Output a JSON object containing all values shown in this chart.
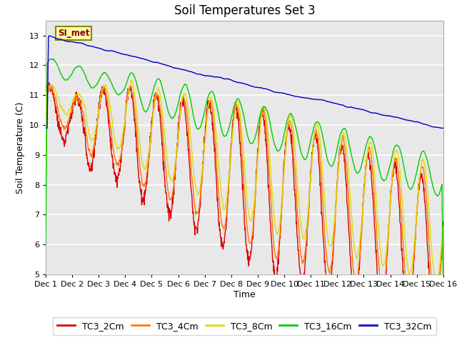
{
  "title": "Soil Temperatures Set 3",
  "xlabel": "Time",
  "ylabel": "Soil Temperature (C)",
  "ylim": [
    5.0,
    13.5
  ],
  "yticks": [
    5.0,
    6.0,
    7.0,
    8.0,
    9.0,
    10.0,
    11.0,
    12.0,
    13.0
  ],
  "xlim": [
    0,
    15
  ],
  "xtick_labels": [
    "Dec 1",
    "Dec 2",
    "Dec 3",
    "Dec 4",
    "Dec 5",
    "Dec 6",
    "Dec 7",
    "Dec 8",
    "Dec 9",
    "Dec 10",
    "Dec 11",
    "Dec 12",
    "Dec 13",
    "Dec 14",
    "Dec 15",
    "Dec 16"
  ],
  "legend_entries": [
    "TC3_2Cm",
    "TC3_4Cm",
    "TC3_8Cm",
    "TC3_16Cm",
    "TC3_32Cm"
  ],
  "line_colors": [
    "#dd0000",
    "#ff7700",
    "#dddd00",
    "#00cc00",
    "#0000cc"
  ],
  "annotation_text": "SI_met",
  "plot_bg_color": "#e8e8e8",
  "fig_bg_color": "#ffffff",
  "n_points": 1440,
  "title_fontsize": 12
}
